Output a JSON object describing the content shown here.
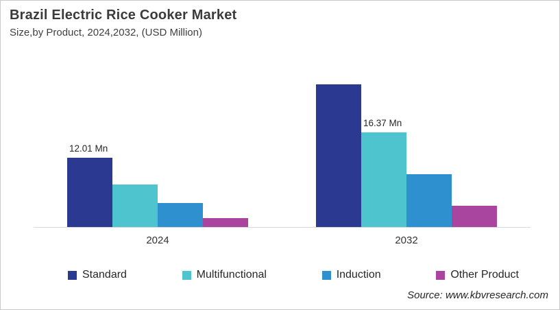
{
  "header": {
    "title": "Brazil Electric Rice Cooker Market",
    "subtitle": "Size,by Product, 2024,2032, (USD Million)"
  },
  "source_text": "Source: www.kbvresearch.com",
  "colors": {
    "standard": "#2b3a90",
    "multifunctional": "#4ec4cf",
    "induction": "#2e90ce",
    "other_product": "#a9449f",
    "axis": "#d9d9d9",
    "text": "#262626"
  },
  "chart_data": {
    "type": "bar",
    "title": "Brazil Electric Rice Cooker Market",
    "subtitle": "Size,by Product, 2024,2032, (USD Million)",
    "unit": "USD Million",
    "categories": [
      "2024",
      "2032"
    ],
    "series": [
      {
        "name": "Standard",
        "color": "#2b3a90",
        "values": [
          12.01,
          24.6
        ]
      },
      {
        "name": "Multifunctional",
        "color": "#4ec4cf",
        "values": [
          7.3,
          16.37
        ]
      },
      {
        "name": "Induction",
        "color": "#2e90ce",
        "values": [
          4.1,
          9.1
        ]
      },
      {
        "name": "Other Product",
        "color": "#a9449f",
        "values": [
          1.5,
          3.7
        ]
      }
    ],
    "data_labels": [
      {
        "category_index": 0,
        "series_index": 0,
        "text": "12.01 Mn"
      },
      {
        "category_index": 1,
        "series_index": 1,
        "text": "16.37 Mn"
      }
    ],
    "xlabel": "",
    "ylabel": "",
    "grid": false,
    "axis_line": "x-only",
    "legend_position": "bottom"
  }
}
